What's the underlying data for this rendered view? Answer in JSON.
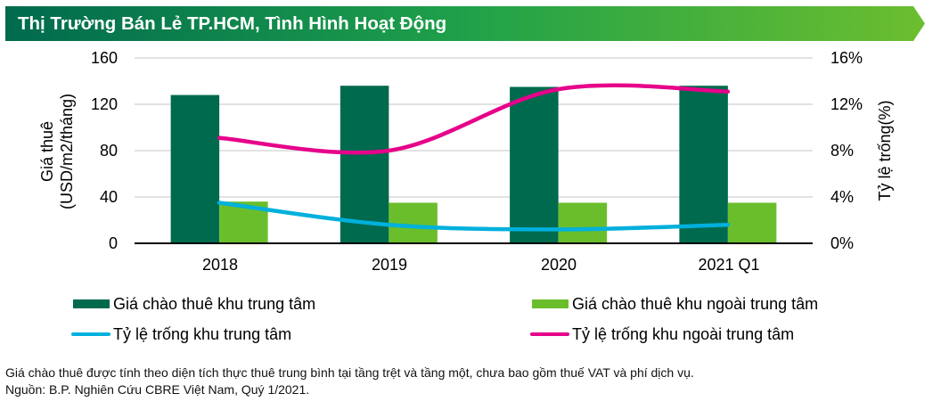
{
  "header": {
    "title": "Thị Trường Bán Lẻ TP.HCM, Tình Hình Hoạt Động",
    "gradient_start": "#006A4E",
    "gradient_end": "#6CBE2E"
  },
  "axes": {
    "left_title_line1": "Giá thuê",
    "left_title_line2": "(USD/m2/tháng)",
    "right_title": "Tỷ lệ trống(%)",
    "left_ticks": [
      "160",
      "120",
      "80",
      "40",
      "0"
    ],
    "right_ticks": [
      "16%",
      "12%",
      "8%",
      "4%",
      "0%"
    ]
  },
  "categories": [
    "2018",
    "2019",
    "2020",
    "2021 Q1"
  ],
  "legend": {
    "item1": "Giá chào thuê khu trung tâm",
    "item2": "Giá chào thuê khu ngoài trung tâm",
    "item3": "Tỷ lệ trống khu trung tâm",
    "item4": "Tỷ lệ trống khu ngoài trung tâm"
  },
  "footnote": {
    "line1": "Giá chào thuê được tính theo diện tích thực thuê trung bình tại tầng trệt và tầng một, chưa bao gồm thuế VAT và phí dịch vụ.",
    "line2": "Nguồn: B.P. Nghiên Cứu CBRE Việt Nam, Quý 1/2021."
  },
  "colors": {
    "cbd_rent": "#006A4E",
    "non_cbd_rent": "#6BBE2B",
    "cbd_vacancy": "#00B0DC",
    "non_cbd_vacancy": "#E6008A",
    "gridline": "#D9D9D9"
  },
  "chart_data": {
    "type": "bar",
    "title": "Thị Trường Bán Lẻ TP.HCM, Tình Hình Hoạt Động",
    "categories": [
      "2018",
      "2019",
      "2020",
      "2021 Q1"
    ],
    "series": [
      {
        "name": "Giá chào thuê khu trung tâm",
        "type": "bar",
        "axis": "left",
        "values": [
          128,
          136,
          135,
          136
        ]
      },
      {
        "name": "Giá chào thuê khu ngoài trung tâm",
        "type": "bar",
        "axis": "left",
        "values": [
          36,
          35,
          35,
          35
        ]
      },
      {
        "name": "Tỷ lệ trống khu trung tâm",
        "type": "line",
        "axis": "right",
        "values": [
          3.5,
          1.6,
          1.2,
          1.6
        ]
      },
      {
        "name": "Tỷ lệ trống khu ngoài trung tâm",
        "type": "line",
        "axis": "right",
        "values": [
          9.1,
          8.0,
          13.3,
          13.1
        ]
      }
    ],
    "xlabel": "",
    "ylabel": "Giá thuê (USD/m2/tháng)",
    "y2label": "Tỷ lệ trống(%)",
    "ylim": [
      0,
      160
    ],
    "y2lim": [
      0,
      16
    ],
    "yticks": [
      0,
      40,
      80,
      120,
      160
    ],
    "y2ticks": [
      "0%",
      "4%",
      "8%",
      "12%",
      "16%"
    ],
    "grid": true,
    "legend_position": "bottom"
  }
}
